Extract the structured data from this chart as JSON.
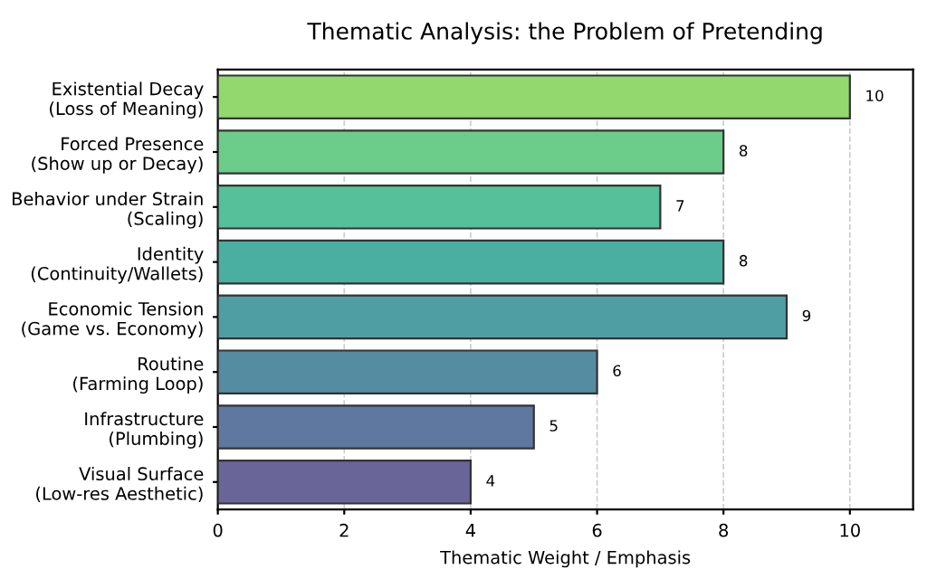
{
  "chart_data": {
    "type": "bar",
    "orientation": "horizontal",
    "title": "Thematic Analysis: the Problem of Pretending",
    "xlabel": "Thematic Weight / Emphasis",
    "categories": [
      "Existential Decay\n(Loss of Meaning)",
      "Forced Presence\n(Show up or Decay)",
      "Behavior under Strain\n(Scaling)",
      "Identity\n(Continuity/Wallets)",
      "Economic Tension\n(Game vs. Economy)",
      "Routine\n(Farming Loop)",
      "Infrastructure\n(Plumbing)",
      "Visual Surface\n(Low-res Aesthetic)"
    ],
    "values": [
      10,
      8,
      7,
      8,
      9,
      6,
      5,
      4
    ],
    "colors": [
      "#93d86f",
      "#6ccd8a",
      "#55c09a",
      "#4aaea0",
      "#4f9ea4",
      "#568ca2",
      "#5e78a0",
      "#6a6599"
    ],
    "data_labels": true,
    "xlim": [
      0,
      11
    ],
    "xticks": [
      0,
      2,
      4,
      6,
      8,
      10
    ],
    "grid": "x",
    "line_style": "dashed"
  }
}
